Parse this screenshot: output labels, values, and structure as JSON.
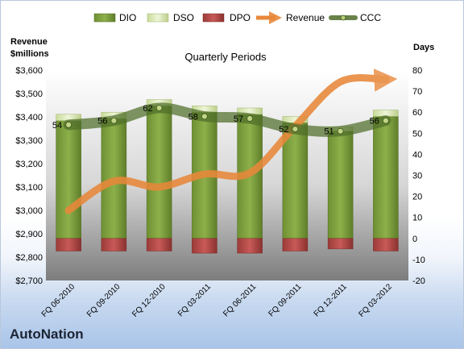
{
  "brand": "AutoNation",
  "chart_data": {
    "type": "bar",
    "title": "Quarterly Periods",
    "left_axis": {
      "label_line1": "Revenue",
      "label_line2": "$millions",
      "min": 2700,
      "max": 3600,
      "step": 100,
      "prefix": "$"
    },
    "right_axis": {
      "label": "Days",
      "min": -20,
      "max": 80,
      "step": 10
    },
    "grid": false,
    "legend_position": "top",
    "categories": [
      "FQ 06-2010",
      "FQ 09-2010",
      "FQ 12-2010",
      "FQ 03-2011",
      "FQ 06-2011",
      "FQ 09-2011",
      "FQ 12-2011",
      "FQ 03-2012"
    ],
    "series": [
      {
        "name": "DIO",
        "kind": "bar",
        "axis": "right",
        "color": "#7a9a3c",
        "values": [
          56,
          57,
          63,
          60,
          59,
          55,
          51,
          58
        ]
      },
      {
        "name": "DSO",
        "kind": "bar",
        "axis": "right",
        "color": "#dbe8b7",
        "values": [
          3,
          3,
          3,
          3,
          3,
          3,
          2,
          3
        ]
      },
      {
        "name": "DPO",
        "kind": "bar",
        "axis": "right",
        "color": "#b34a48",
        "values": [
          -6,
          -6,
          -6,
          -7,
          -7,
          -6,
          -5,
          -6
        ]
      },
      {
        "name": "Revenue",
        "kind": "line",
        "axis": "left",
        "color": "#e8883a",
        "values": [
          3000,
          3125,
          3100,
          3155,
          3160,
          3360,
          3550,
          3560
        ]
      },
      {
        "name": "CCC",
        "kind": "line",
        "axis": "right",
        "color": "#5b7a32",
        "values": [
          54,
          56,
          62,
          58,
          57,
          52,
          51,
          56
        ]
      }
    ],
    "ccc_labels": [
      "54",
      "56",
      "62",
      "58",
      "57",
      "52",
      "51",
      "56"
    ]
  }
}
